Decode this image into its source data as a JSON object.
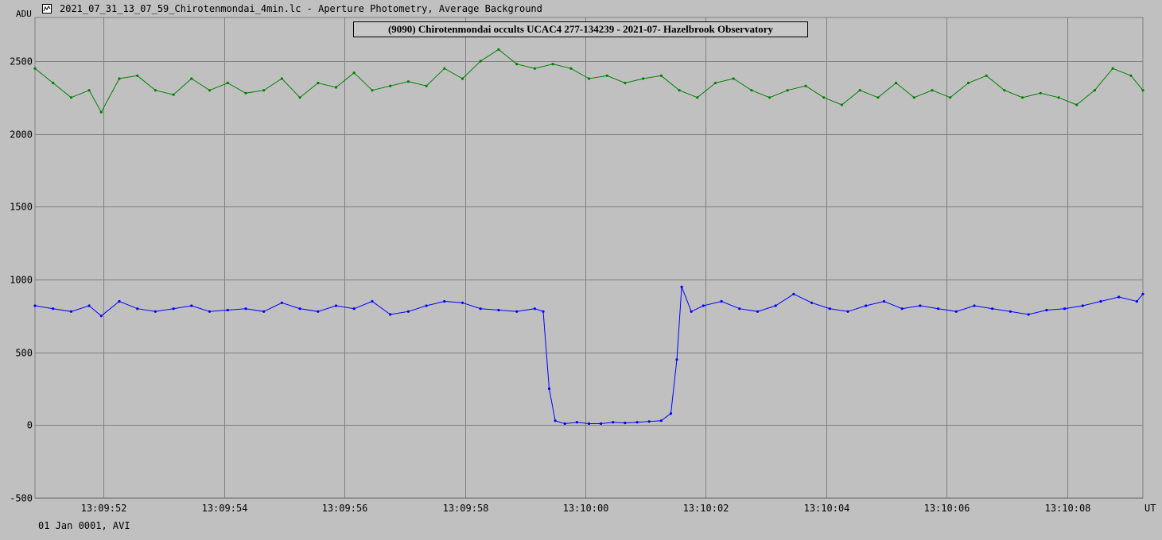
{
  "window": {
    "title": "2021_07_31_13_07_59_Chirotenmondai_4min.lc - Aperture Photometry, Average Background",
    "icon": "chart-app-icon"
  },
  "footer": {
    "date_note": "01 Jan 0001, AVI"
  },
  "chart_data": {
    "type": "line",
    "title": "(9090) Chirotenmondai occults UCAC4 277-134239 - 2021-07- Hazelbrook Observatory",
    "ylabel": "ADU",
    "xlabel": "UT",
    "ylim": [
      -500,
      2800
    ],
    "xlim": [
      0,
      92
    ],
    "y_ticks": [
      "2500",
      "2000",
      "1500",
      "1000",
      "500",
      "0",
      "-500"
    ],
    "y_tick_values": [
      2500,
      2000,
      1500,
      1000,
      500,
      0,
      -500
    ],
    "x_ticks": [
      "13:09:52",
      "13:09:54",
      "13:09:56",
      "13:09:58",
      "13:10:00",
      "13:10:02",
      "13:10:04",
      "13:10:06",
      "13:10:08"
    ],
    "x_tick_values": [
      5.7,
      15.7,
      25.7,
      35.7,
      45.7,
      55.7,
      65.7,
      75.7,
      85.7
    ],
    "grid": true,
    "series": [
      {
        "color": "#008000",
        "points": [
          [
            0,
            2450
          ],
          [
            1.5,
            2350
          ],
          [
            3,
            2250
          ],
          [
            4.5,
            2300
          ],
          [
            5.5,
            2150
          ],
          [
            7,
            2380
          ],
          [
            8.5,
            2400
          ],
          [
            10,
            2300
          ],
          [
            11.5,
            2270
          ],
          [
            13,
            2380
          ],
          [
            14.5,
            2300
          ],
          [
            16,
            2350
          ],
          [
            17.5,
            2280
          ],
          [
            19,
            2300
          ],
          [
            20.5,
            2380
          ],
          [
            22,
            2250
          ],
          [
            23.5,
            2350
          ],
          [
            25,
            2320
          ],
          [
            26.5,
            2420
          ],
          [
            28,
            2300
          ],
          [
            29.5,
            2330
          ],
          [
            31,
            2360
          ],
          [
            32.5,
            2330
          ],
          [
            34,
            2450
          ],
          [
            35.5,
            2380
          ],
          [
            37,
            2500
          ],
          [
            38.5,
            2580
          ],
          [
            40,
            2480
          ],
          [
            41.5,
            2450
          ],
          [
            43,
            2480
          ],
          [
            44.5,
            2450
          ],
          [
            46,
            2380
          ],
          [
            47.5,
            2400
          ],
          [
            49,
            2350
          ],
          [
            50.5,
            2380
          ],
          [
            52,
            2400
          ],
          [
            53.5,
            2300
          ],
          [
            55,
            2250
          ],
          [
            56.5,
            2350
          ],
          [
            58,
            2380
          ],
          [
            59.5,
            2300
          ],
          [
            61,
            2250
          ],
          [
            62.5,
            2300
          ],
          [
            64,
            2330
          ],
          [
            65.5,
            2250
          ],
          [
            67,
            2200
          ],
          [
            68.5,
            2300
          ],
          [
            70,
            2250
          ],
          [
            71.5,
            2350
          ],
          [
            73,
            2250
          ],
          [
            74.5,
            2300
          ],
          [
            76,
            2250
          ],
          [
            77.5,
            2350
          ],
          [
            79,
            2400
          ],
          [
            80.5,
            2300
          ],
          [
            82,
            2250
          ],
          [
            83.5,
            2280
          ],
          [
            85,
            2250
          ],
          [
            86.5,
            2200
          ],
          [
            88,
            2300
          ],
          [
            89.5,
            2450
          ],
          [
            91,
            2400
          ],
          [
            92,
            2300
          ]
        ]
      },
      {
        "color": "#0000ff",
        "points": [
          [
            0,
            820
          ],
          [
            1.5,
            800
          ],
          [
            3,
            780
          ],
          [
            4.5,
            820
          ],
          [
            5.5,
            750
          ],
          [
            7,
            850
          ],
          [
            8.5,
            800
          ],
          [
            10,
            780
          ],
          [
            11.5,
            800
          ],
          [
            13,
            820
          ],
          [
            14.5,
            780
          ],
          [
            16,
            790
          ],
          [
            17.5,
            800
          ],
          [
            19,
            780
          ],
          [
            20.5,
            840
          ],
          [
            22,
            800
          ],
          [
            23.5,
            780
          ],
          [
            25,
            820
          ],
          [
            26.5,
            800
          ],
          [
            28,
            850
          ],
          [
            29.5,
            760
          ],
          [
            31,
            780
          ],
          [
            32.5,
            820
          ],
          [
            34,
            850
          ],
          [
            35.5,
            840
          ],
          [
            37,
            800
          ],
          [
            38.5,
            790
          ],
          [
            40,
            780
          ],
          [
            41.5,
            800
          ],
          [
            42.2,
            780
          ],
          [
            42.7,
            250
          ],
          [
            43.2,
            30
          ],
          [
            44,
            10
          ],
          [
            45,
            20
          ],
          [
            46,
            10
          ],
          [
            47,
            10
          ],
          [
            48,
            20
          ],
          [
            49,
            15
          ],
          [
            50,
            20
          ],
          [
            51,
            25
          ],
          [
            52,
            30
          ],
          [
            52.8,
            80
          ],
          [
            53.3,
            450
          ],
          [
            53.7,
            950
          ],
          [
            54.5,
            780
          ],
          [
            55.5,
            820
          ],
          [
            57,
            850
          ],
          [
            58.5,
            800
          ],
          [
            60,
            780
          ],
          [
            61.5,
            820
          ],
          [
            63,
            900
          ],
          [
            64.5,
            840
          ],
          [
            66,
            800
          ],
          [
            67.5,
            780
          ],
          [
            69,
            820
          ],
          [
            70.5,
            850
          ],
          [
            72,
            800
          ],
          [
            73.5,
            820
          ],
          [
            75,
            800
          ],
          [
            76.5,
            780
          ],
          [
            78,
            820
          ],
          [
            79.5,
            800
          ],
          [
            81,
            780
          ],
          [
            82.5,
            760
          ],
          [
            84,
            790
          ],
          [
            85.5,
            800
          ],
          [
            87,
            820
          ],
          [
            88.5,
            850
          ],
          [
            90,
            880
          ],
          [
            91.5,
            850
          ],
          [
            92,
            900
          ]
        ]
      }
    ]
  }
}
